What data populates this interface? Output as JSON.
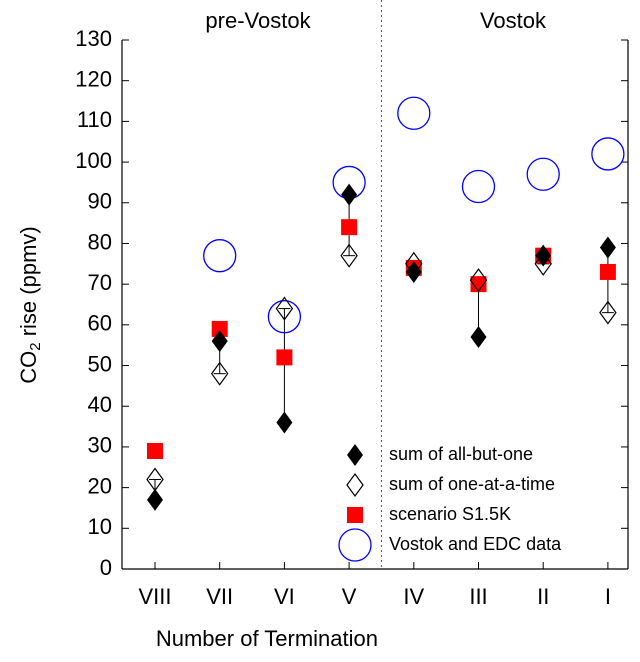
{
  "chart_data": {
    "type": "scatter",
    "annotations": [
      "pre-Vostok",
      "Vostok"
    ],
    "ylabel": {
      "main": "CO",
      "sub": "2",
      "rest": " rise (ppmv)"
    },
    "xlabel": "Number of Termination",
    "categories": [
      "VIII",
      "VII",
      "VI",
      "V",
      "IV",
      "III",
      "II",
      "I"
    ],
    "ylim": [
      0,
      130
    ],
    "yticks": [
      0,
      10,
      20,
      30,
      40,
      50,
      60,
      70,
      80,
      90,
      100,
      110,
      120,
      130
    ],
    "legend": "lower right",
    "series": [
      {
        "name": "sum of all-but-one",
        "marker": "filled-diamond",
        "color": "#000000",
        "values": [
          17,
          56,
          36,
          92,
          73,
          57,
          77,
          79
        ]
      },
      {
        "name": "sum of one-at-a-time",
        "marker": "open-diamond",
        "color": "#000000",
        "values": [
          22,
          48,
          64,
          77,
          75,
          71,
          75,
          63
        ]
      },
      {
        "name": "scenario S1.5K",
        "marker": "square",
        "color": "#ff0000",
        "values": [
          29,
          59,
          52,
          84,
          74,
          70,
          77,
          73
        ]
      },
      {
        "name": "Vostok and EDC data",
        "marker": "circle",
        "color": "#0000ff",
        "values": [
          null,
          77,
          62,
          95,
          112,
          94,
          97,
          102
        ]
      }
    ]
  }
}
